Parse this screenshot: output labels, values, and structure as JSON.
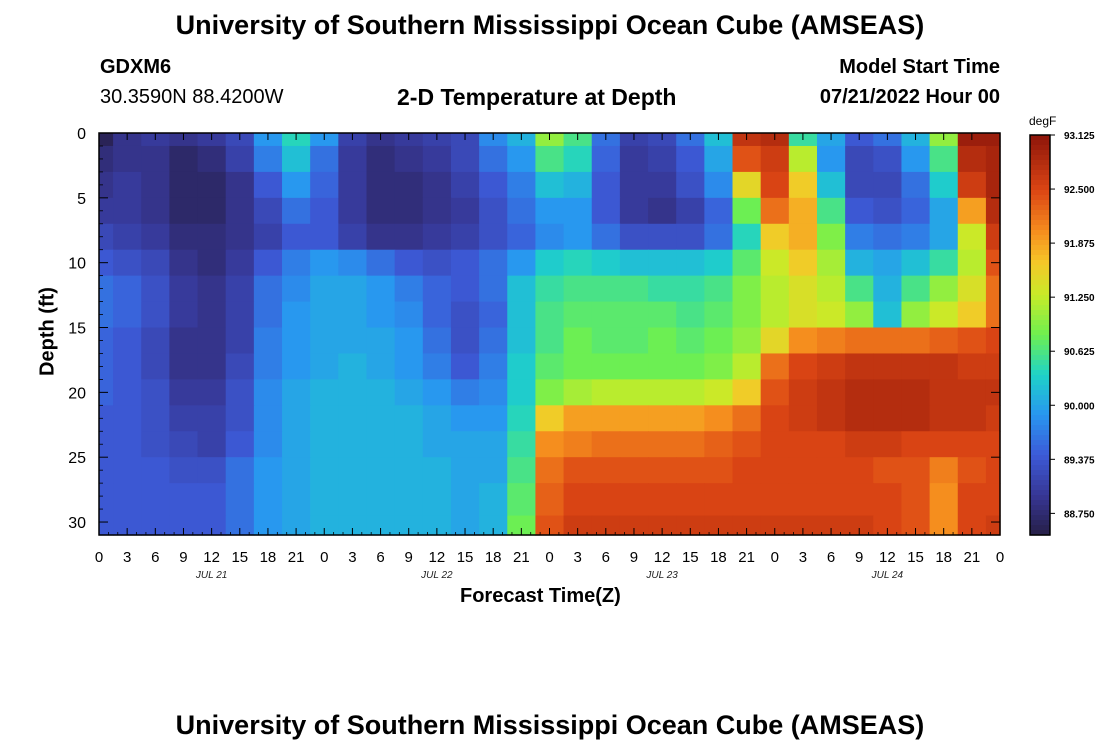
{
  "page": {
    "title": "University of Southern Mississippi Ocean Cube (AMSEAS)",
    "footer_title": "University of Southern Mississippi Ocean Cube (AMSEAS)",
    "station_id": "GDXM6",
    "coordinates": "30.3590N  88.4200W",
    "plot_title": "2-D Temperature at Depth",
    "model_start_label": "Model Start Time",
    "model_start_value": "07/21/2022 Hour 00"
  },
  "chart_data": {
    "type": "heatmap",
    "title": "2-D Temperature at Depth",
    "xlabel": "Forecast Time(Z)",
    "ylabel": "Depth (ft)",
    "xlim": [
      0,
      96
    ],
    "ylim": [
      31,
      0
    ],
    "x_ticks": [
      0,
      3,
      6,
      9,
      12,
      15,
      18,
      21,
      24,
      27,
      30,
      33,
      36,
      39,
      42,
      45,
      48,
      51,
      54,
      57,
      60,
      63,
      66,
      69,
      72,
      75,
      78,
      81,
      84,
      87,
      90,
      93,
      96
    ],
    "x_tick_labels": [
      "0",
      "3",
      "6",
      "9",
      "12",
      "15",
      "18",
      "21",
      "0",
      "3",
      "6",
      "9",
      "12",
      "15",
      "18",
      "21",
      "0",
      "3",
      "6",
      "9",
      "12",
      "15",
      "18",
      "21",
      "0",
      "3",
      "6",
      "9",
      "12",
      "15",
      "18",
      "21",
      "0"
    ],
    "day_labels": [
      {
        "x": 12,
        "label": "JUL 21"
      },
      {
        "x": 36,
        "label": "JUL 22"
      },
      {
        "x": 60,
        "label": "JUL 23"
      },
      {
        "x": 84,
        "label": "JUL 24"
      }
    ],
    "y_ticks": [
      0,
      5,
      10,
      15,
      20,
      25,
      30
    ],
    "y_tick_labels": [
      "0",
      "5",
      "10",
      "15",
      "20",
      "25",
      "30"
    ],
    "colorbar": {
      "unit": "degF",
      "min": 88.5,
      "max": 93.125,
      "tick_values": [
        93.125,
        92.5,
        91.875,
        91.25,
        90.625,
        90.0,
        89.375,
        88.75
      ],
      "tick_labels": [
        "93.125",
        "92.500",
        "91.875",
        "91.250",
        "90.625",
        "90.000",
        "89.375",
        "88.750"
      ]
    },
    "depths": [
      0,
      2,
      4,
      6,
      8,
      10,
      12,
      14,
      16,
      18,
      20,
      22,
      24,
      26,
      28,
      31
    ],
    "times": [
      0,
      3,
      6,
      9,
      12,
      15,
      18,
      21,
      24,
      27,
      30,
      33,
      36,
      39,
      42,
      45,
      48,
      51,
      54,
      57,
      60,
      63,
      66,
      69,
      72,
      75,
      78,
      81,
      84,
      87,
      90,
      93,
      96
    ],
    "values": [
      [
        88.6,
        88.9,
        89.0,
        88.9,
        89.0,
        89.2,
        89.9,
        90.4,
        89.9,
        89.1,
        88.9,
        89.0,
        89.1,
        89.2,
        89.8,
        90.1,
        91.0,
        90.6,
        89.6,
        89.1,
        89.2,
        89.6,
        90.2,
        92.7,
        92.8,
        90.5,
        90.0,
        89.4,
        89.6,
        90.1,
        91.0,
        93.0,
        93.0
      ],
      [
        88.8,
        88.9,
        88.9,
        88.7,
        88.8,
        89.1,
        89.7,
        90.2,
        89.6,
        89.0,
        88.8,
        88.9,
        89.0,
        89.2,
        89.6,
        89.9,
        90.6,
        90.4,
        89.5,
        89.0,
        89.1,
        89.4,
        90.0,
        92.4,
        92.6,
        91.2,
        89.9,
        89.2,
        89.3,
        89.9,
        90.6,
        92.8,
        92.9
      ],
      [
        88.9,
        89.0,
        88.9,
        88.7,
        88.7,
        88.9,
        89.4,
        89.9,
        89.5,
        89.0,
        88.8,
        88.8,
        88.9,
        89.1,
        89.4,
        89.7,
        90.2,
        90.1,
        89.4,
        89.0,
        89.0,
        89.3,
        89.8,
        91.5,
        92.5,
        91.6,
        90.2,
        89.2,
        89.2,
        89.6,
        90.3,
        92.6,
        92.9
      ],
      [
        89.0,
        89.0,
        88.9,
        88.7,
        88.7,
        88.9,
        89.2,
        89.6,
        89.4,
        89.0,
        88.8,
        88.8,
        88.9,
        89.0,
        89.3,
        89.6,
        89.9,
        89.9,
        89.4,
        89.0,
        88.9,
        89.1,
        89.5,
        90.8,
        92.2,
        91.8,
        90.6,
        89.4,
        89.3,
        89.5,
        90.0,
        91.9,
        92.8
      ],
      [
        89.2,
        89.1,
        89.0,
        88.8,
        88.8,
        88.9,
        89.1,
        89.4,
        89.4,
        89.1,
        88.9,
        88.9,
        89.0,
        89.1,
        89.3,
        89.5,
        89.8,
        89.9,
        89.6,
        89.3,
        89.3,
        89.3,
        89.6,
        90.4,
        91.6,
        91.8,
        90.9,
        89.7,
        89.6,
        89.7,
        90.0,
        91.3,
        92.6
      ],
      [
        89.4,
        89.3,
        89.2,
        88.9,
        88.8,
        89.0,
        89.4,
        89.7,
        89.9,
        89.8,
        89.6,
        89.4,
        89.3,
        89.4,
        89.6,
        89.9,
        90.3,
        90.4,
        90.3,
        90.2,
        90.2,
        90.2,
        90.3,
        90.7,
        91.3,
        91.6,
        91.1,
        90.1,
        90.0,
        90.2,
        90.5,
        91.2,
        92.4
      ],
      [
        89.6,
        89.5,
        89.3,
        89.0,
        88.9,
        89.1,
        89.6,
        89.8,
        90.0,
        90.0,
        89.9,
        89.7,
        89.5,
        89.4,
        89.6,
        90.2,
        90.5,
        90.6,
        90.6,
        90.6,
        90.5,
        90.5,
        90.6,
        90.9,
        91.2,
        91.4,
        91.2,
        90.6,
        90.1,
        90.6,
        91.0,
        91.4,
        92.2
      ],
      [
        89.6,
        89.5,
        89.3,
        89.0,
        88.9,
        89.1,
        89.6,
        89.9,
        90.0,
        90.0,
        89.9,
        89.8,
        89.5,
        89.3,
        89.5,
        90.2,
        90.6,
        90.7,
        90.7,
        90.7,
        90.7,
        90.6,
        90.7,
        90.9,
        91.2,
        91.4,
        91.3,
        91.0,
        90.2,
        91.0,
        91.3,
        91.6,
        92.2
      ],
      [
        89.5,
        89.4,
        89.2,
        88.9,
        88.9,
        89.1,
        89.7,
        89.9,
        90.0,
        90.0,
        90.0,
        89.9,
        89.6,
        89.3,
        89.6,
        90.2,
        90.6,
        90.8,
        90.7,
        90.7,
        90.8,
        90.7,
        90.8,
        91.0,
        91.5,
        92.0,
        92.1,
        92.2,
        92.2,
        92.2,
        92.3,
        92.4,
        92.5
      ],
      [
        89.5,
        89.4,
        89.2,
        88.9,
        88.9,
        89.2,
        89.7,
        89.9,
        90.0,
        90.1,
        90.0,
        89.9,
        89.7,
        89.4,
        89.7,
        90.3,
        90.7,
        90.8,
        90.8,
        90.8,
        90.8,
        90.8,
        90.9,
        91.2,
        92.2,
        92.5,
        92.6,
        92.7,
        92.7,
        92.7,
        92.7,
        92.6,
        92.6
      ],
      [
        89.5,
        89.4,
        89.3,
        89.0,
        89.0,
        89.3,
        89.8,
        90.0,
        90.1,
        90.1,
        90.1,
        90.0,
        89.9,
        89.7,
        89.8,
        90.3,
        90.9,
        91.1,
        91.2,
        91.2,
        91.2,
        91.2,
        91.3,
        91.6,
        92.4,
        92.6,
        92.7,
        92.8,
        92.8,
        92.8,
        92.7,
        92.7,
        92.7
      ],
      [
        89.4,
        89.4,
        89.3,
        89.1,
        89.1,
        89.3,
        89.8,
        90.0,
        90.1,
        90.1,
        90.1,
        90.1,
        90.0,
        89.9,
        89.9,
        90.4,
        91.6,
        91.9,
        91.9,
        91.9,
        91.9,
        91.9,
        92.0,
        92.2,
        92.5,
        92.6,
        92.7,
        92.8,
        92.8,
        92.8,
        92.7,
        92.7,
        92.6
      ],
      [
        89.4,
        89.4,
        89.3,
        89.2,
        89.1,
        89.4,
        89.8,
        90.0,
        90.1,
        90.1,
        90.1,
        90.1,
        90.0,
        90.0,
        90.0,
        90.5,
        92.0,
        92.1,
        92.2,
        92.2,
        92.2,
        92.2,
        92.3,
        92.4,
        92.5,
        92.5,
        92.5,
        92.6,
        92.6,
        92.5,
        92.5,
        92.5,
        92.5
      ],
      [
        89.4,
        89.4,
        89.4,
        89.3,
        89.3,
        89.6,
        89.9,
        90.0,
        90.1,
        90.1,
        90.1,
        90.1,
        90.1,
        90.0,
        90.0,
        90.6,
        92.2,
        92.4,
        92.4,
        92.4,
        92.4,
        92.4,
        92.4,
        92.5,
        92.5,
        92.5,
        92.5,
        92.5,
        92.4,
        92.4,
        92.1,
        92.4,
        92.5
      ],
      [
        89.4,
        89.4,
        89.4,
        89.4,
        89.4,
        89.6,
        89.9,
        90.0,
        90.1,
        90.1,
        90.1,
        90.1,
        90.1,
        90.0,
        90.1,
        90.7,
        92.3,
        92.5,
        92.5,
        92.5,
        92.5,
        92.5,
        92.5,
        92.5,
        92.5,
        92.5,
        92.5,
        92.5,
        92.5,
        92.4,
        92.0,
        92.5,
        92.5
      ],
      [
        89.4,
        89.4,
        89.4,
        89.4,
        89.4,
        89.6,
        89.9,
        90.0,
        90.1,
        90.1,
        90.1,
        90.1,
        90.1,
        90.0,
        90.1,
        90.8,
        92.4,
        92.6,
        92.6,
        92.6,
        92.6,
        92.6,
        92.6,
        92.6,
        92.6,
        92.6,
        92.6,
        92.6,
        92.5,
        92.4,
        92.0,
        92.5,
        92.6
      ]
    ]
  }
}
